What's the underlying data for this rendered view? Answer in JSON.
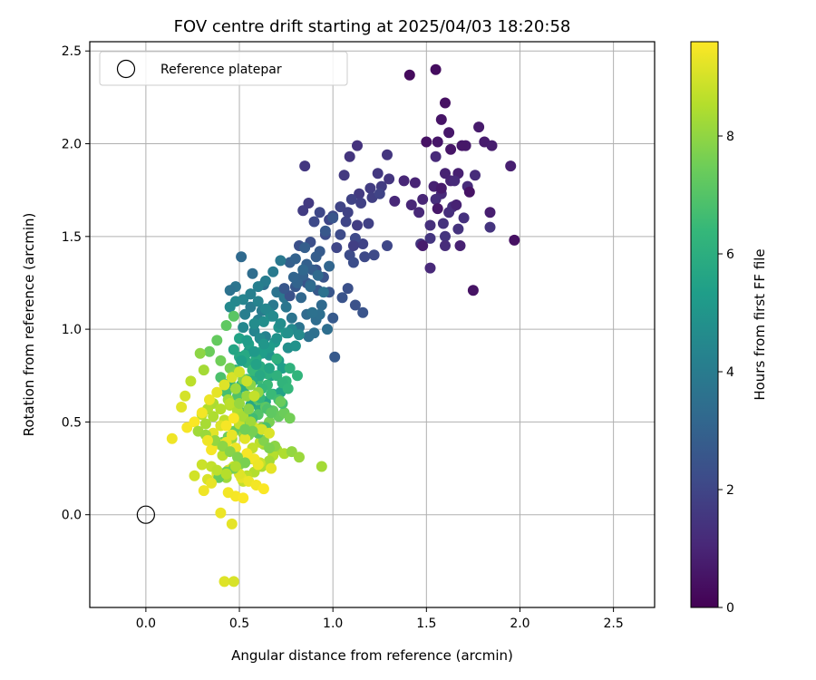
{
  "chart_data": {
    "type": "scatter",
    "title": "FOV centre drift starting at 2025/04/03 18:20:58",
    "xlabel": "Angular distance from reference (arcmin)",
    "ylabel": "Rotation from reference (arcmin)",
    "xlim": [
      -0.3,
      2.72
    ],
    "ylim": [
      -0.5,
      2.55
    ],
    "xticks": [
      0.0,
      0.5,
      1.0,
      1.5,
      2.0,
      2.5
    ],
    "yticks": [
      0.0,
      0.5,
      1.0,
      1.5,
      2.0,
      2.5
    ],
    "xtick_labels": [
      "0.0",
      "0.5",
      "1.0",
      "1.5",
      "2.0",
      "2.5"
    ],
    "ytick_labels": [
      "0.0",
      "0.5",
      "1.0",
      "1.5",
      "2.0",
      "2.5"
    ],
    "grid": true,
    "colormap": "viridis",
    "colorbar": {
      "label": "Hours from first FF file",
      "range": [
        0,
        9.6
      ],
      "ticks": [
        0,
        2,
        4,
        6,
        8
      ],
      "tick_labels": [
        "0",
        "2",
        "4",
        "6",
        "8"
      ]
    },
    "legend": {
      "placement": "top-left",
      "entries": [
        "Reference platepar"
      ]
    },
    "reference_point": {
      "x": 0.0,
      "y": 0.0
    },
    "series": [
      {
        "color_encodes": "hours",
        "x": [
          1.41,
          1.55,
          1.6,
          1.5,
          1.58,
          1.56,
          1.62,
          1.71,
          1.78,
          1.81,
          1.85,
          1.95,
          1.67,
          1.54,
          1.6,
          1.63,
          1.48,
          1.38,
          1.33,
          1.46,
          1.58,
          1.65,
          1.72,
          1.76,
          1.64,
          1.55,
          1.62,
          1.52,
          1.7,
          1.59,
          1.67,
          1.84,
          1.6,
          1.52,
          1.47,
          1.73,
          1.56,
          1.48,
          1.97,
          1.68,
          1.44,
          1.52,
          1.6,
          1.84,
          1.58,
          1.63,
          1.69,
          1.42,
          1.55,
          1.66,
          1.75,
          1.13,
          0.85,
          1.06,
          1.09,
          1.14,
          1.2,
          1.24,
          1.26,
          1.29,
          1.21,
          1.15,
          1.1,
          1.04,
          0.98,
          0.93,
          0.9,
          1.0,
          1.07,
          1.16,
          1.19,
          1.12,
          1.04,
          0.96,
          0.88,
          0.82,
          1.02,
          1.09,
          1.11,
          1.17,
          1.22,
          1.29,
          0.91,
          0.95,
          0.86,
          0.8,
          0.92,
          0.98,
          1.05,
          1.12,
          1.16,
          1.08,
          1.0,
          0.87,
          0.84,
          1.13,
          1.11,
          1.08,
          1.25,
          1.3,
          1.0,
          0.96,
          0.93,
          0.91,
          0.89,
          0.86,
          0.84,
          0.81,
          0.79,
          0.77,
          0.88,
          0.83,
          0.94,
          0.86,
          0.91,
          0.97,
          0.9,
          0.87,
          0.82,
          0.78,
          0.75,
          0.95,
          0.92,
          0.98,
          0.85,
          0.8,
          0.88,
          0.93,
          0.89,
          0.84,
          0.51,
          0.57,
          0.63,
          0.7,
          0.74,
          0.68,
          0.62,
          0.56,
          0.48,
          0.45,
          0.53,
          0.6,
          0.66,
          0.72,
          0.78,
          0.82,
          0.64,
          0.58,
          0.52,
          0.61,
          0.69,
          0.76,
          0.8,
          0.66,
          0.59,
          0.55,
          0.71,
          0.73,
          0.67,
          0.63,
          0.57,
          0.5,
          0.54,
          0.62,
          0.7,
          0.77,
          0.81,
          0.75,
          0.65,
          0.6,
          0.58,
          0.68,
          0.72,
          0.64,
          0.56,
          0.49,
          0.53,
          0.61,
          1.01,
          0.77,
          0.74,
          0.72,
          0.68,
          0.64,
          0.6,
          0.56,
          0.52,
          0.48,
          0.45,
          0.58,
          0.63,
          0.67,
          0.71,
          0.75,
          0.69,
          0.66,
          0.62,
          0.55,
          0.5,
          0.47,
          0.53,
          0.59,
          0.61,
          0.65,
          0.7,
          0.73,
          0.76,
          0.57,
          0.54,
          0.51,
          0.43,
          0.4,
          0.49,
          0.6,
          0.64,
          0.68,
          0.71,
          0.74,
          0.77,
          0.66,
          0.62,
          0.58,
          0.55,
          0.52,
          0.46,
          0.63,
          0.7,
          0.74,
          0.68,
          0.61,
          0.57,
          0.56,
          0.6,
          0.64,
          0.68,
          0.72,
          0.76,
          0.7,
          0.63,
          0.58,
          0.54,
          0.51,
          0.59,
          0.66,
          0.61,
          0.57,
          0.53,
          0.48,
          0.45,
          0.62,
          0.67,
          0.71,
          0.73,
          0.65,
          0.6,
          0.56,
          0.5,
          0.47,
          0.44,
          0.41,
          0.55,
          0.63,
          0.69,
          0.78,
          0.82,
          0.66,
          0.62,
          0.58,
          0.54,
          0.52,
          0.49,
          0.61,
          0.57,
          0.64,
          0.6,
          0.67,
          0.72,
          0.55,
          0.5,
          0.46,
          0.43,
          0.47,
          0.43,
          0.38,
          0.34,
          0.4,
          0.45,
          0.49,
          0.52,
          0.56,
          0.6,
          0.54,
          0.48,
          0.44,
          0.36,
          0.33,
          0.3,
          0.42,
          0.5,
          0.58,
          0.62,
          0.66,
          0.53,
          0.46,
          0.39,
          0.35,
          0.41,
          0.57,
          0.61,
          0.47,
          0.44,
          0.38,
          0.51,
          0.55,
          0.59,
          0.63,
          0.45,
          0.49,
          0.52,
          0.56,
          0.94,
          0.4,
          0.36,
          0.43,
          0.48,
          0.54,
          0.58,
          0.6,
          0.67,
          0.5,
          0.33,
          0.29,
          0.31,
          0.24,
          0.21,
          0.19,
          0.14,
          0.22,
          0.26,
          0.3,
          0.34,
          0.38,
          0.42,
          0.46,
          0.5,
          0.54,
          0.58,
          0.45,
          0.4,
          0.36,
          0.32,
          0.28,
          0.32,
          0.37,
          0.41,
          0.45,
          0.49,
          0.53,
          0.47,
          0.43,
          0.39,
          0.35,
          0.31,
          0.48,
          0.52,
          0.44,
          0.4,
          0.46,
          0.42,
          0.47,
          0.26,
          0.3,
          0.35,
          0.38,
          0.43,
          0.48,
          0.33,
          0.43,
          0.47,
          0.5,
          0.55,
          0.66,
          0.57,
          0.53
        ],
        "y": [
          2.37,
          2.4,
          2.22,
          2.01,
          2.13,
          2.01,
          2.06,
          1.99,
          2.09,
          2.01,
          1.99,
          1.88,
          1.84,
          1.77,
          1.84,
          1.8,
          1.7,
          1.8,
          1.69,
          1.63,
          1.73,
          1.8,
          1.77,
          1.83,
          1.66,
          1.7,
          1.63,
          1.56,
          1.6,
          1.57,
          1.54,
          1.55,
          1.5,
          1.49,
          1.46,
          1.74,
          1.65,
          1.45,
          1.48,
          1.45,
          1.79,
          1.33,
          1.45,
          1.63,
          1.76,
          1.97,
          1.99,
          1.67,
          1.93,
          1.67,
          1.21,
          1.99,
          1.88,
          1.83,
          1.93,
          1.73,
          1.76,
          1.84,
          1.77,
          1.94,
          1.71,
          1.68,
          1.7,
          1.66,
          1.59,
          1.63,
          1.58,
          1.61,
          1.58,
          1.46,
          1.57,
          1.49,
          1.51,
          1.51,
          1.47,
          1.45,
          1.44,
          1.4,
          1.36,
          1.39,
          1.4,
          1.45,
          1.32,
          1.28,
          1.25,
          1.23,
          1.21,
          1.2,
          1.17,
          1.13,
          1.09,
          1.22,
          1.06,
          1.68,
          1.64,
          1.56,
          1.45,
          1.63,
          1.73,
          1.81,
          1.6,
          1.53,
          1.42,
          1.39,
          1.32,
          1.35,
          1.29,
          1.25,
          1.28,
          1.36,
          1.24,
          1.17,
          1.13,
          1.08,
          1.05,
          1.0,
          0.98,
          0.96,
          1.01,
          1.06,
          1.12,
          1.2,
          1.29,
          1.34,
          1.44,
          1.38,
          1.23,
          1.08,
          1.09,
          1.32,
          1.39,
          1.3,
          1.24,
          1.2,
          1.17,
          1.13,
          1.1,
          1.12,
          1.23,
          1.21,
          1.08,
          1.05,
          1.09,
          1.03,
          1.0,
          0.97,
          0.96,
          0.99,
          1.01,
          0.95,
          0.93,
          0.9,
          0.91,
          0.86,
          0.85,
          0.88,
          0.83,
          0.79,
          0.75,
          0.78,
          0.81,
          0.85,
          0.82,
          0.88,
          0.84,
          0.79,
          0.75,
          0.72,
          0.7,
          0.73,
          0.77,
          0.65,
          0.66,
          0.61,
          0.59,
          0.67,
          0.55,
          0.57,
          0.85,
          1.18,
          1.22,
          1.37,
          1.31,
          1.26,
          1.23,
          1.19,
          1.16,
          1.15,
          1.12,
          1.03,
          1.04,
          1.07,
          1.01,
          0.98,
          0.93,
          0.9,
          0.87,
          0.92,
          0.95,
          0.89,
          0.86,
          0.84,
          0.8,
          0.76,
          0.75,
          0.71,
          0.68,
          0.78,
          0.73,
          0.7,
          0.66,
          0.74,
          0.64,
          0.62,
          0.58,
          0.56,
          0.53,
          0.55,
          0.52,
          0.5,
          0.47,
          0.46,
          0.48,
          0.44,
          0.41,
          0.38,
          0.35,
          0.33,
          0.32,
          0.39,
          0.36,
          1.19,
          1.15,
          1.11,
          1.07,
          1.03,
          0.98,
          0.95,
          0.92,
          0.88,
          0.94,
          0.83,
          0.81,
          0.79,
          0.75,
          0.72,
          0.69,
          0.78,
          0.71,
          0.68,
          0.65,
          0.62,
          0.6,
          0.57,
          0.54,
          0.51,
          0.48,
          0.45,
          0.42,
          0.39,
          0.43,
          0.4,
          0.37,
          0.34,
          0.31,
          0.29,
          0.26,
          0.23,
          0.21,
          0.18,
          0.58,
          0.63,
          0.52,
          0.47,
          0.44,
          0.55,
          0.61,
          0.49,
          0.27,
          0.25,
          0.2,
          1.07,
          1.02,
          0.94,
          0.88,
          0.83,
          0.79,
          0.77,
          0.73,
          0.7,
          0.66,
          0.64,
          0.68,
          0.62,
          0.6,
          0.57,
          0.54,
          0.51,
          0.49,
          0.47,
          0.46,
          0.44,
          0.41,
          0.43,
          0.38,
          0.35,
          0.32,
          0.3,
          0.28,
          0.26,
          0.24,
          0.22,
          0.2,
          0.18,
          0.16,
          0.14,
          0.59,
          0.56,
          0.53,
          0.5,
          0.26,
          0.48,
          0.44,
          0.39,
          0.36,
          0.33,
          0.3,
          0.27,
          0.25,
          0.22,
          0.19,
          0.87,
          0.78,
          0.72,
          0.64,
          0.58,
          0.41,
          0.47,
          0.5,
          0.55,
          0.62,
          0.66,
          0.7,
          0.74,
          0.77,
          0.72,
          0.64,
          0.6,
          0.57,
          0.53,
          0.49,
          0.45,
          0.43,
          0.4,
          0.37,
          0.34,
          0.31,
          0.28,
          0.25,
          0.23,
          0.2,
          0.17,
          0.13,
          0.1,
          0.09,
          0.12,
          0.01,
          -0.05,
          -0.36,
          -0.36,
          0.21,
          0.27,
          0.26,
          0.24,
          0.22,
          0.26,
          0.4,
          0.48,
          0.52,
          0.6,
          0.57,
          0.36,
          0.45,
          0.46
        ],
        "hours": [
          0.28,
          0.34,
          0.41,
          0.47,
          0.52,
          0.58,
          0.61,
          0.66,
          0.7,
          0.74,
          0.78,
          0.82,
          0.86,
          0.9,
          0.93,
          0.96,
          1.0,
          1.03,
          1.06,
          1.09,
          1.12,
          1.15,
          1.18,
          1.21,
          1.24,
          1.27,
          1.3,
          1.33,
          1.36,
          1.38,
          1.41,
          1.44,
          1.46,
          1.49,
          1.52,
          0.5,
          0.62,
          0.75,
          0.44,
          0.88,
          0.97,
          1.1,
          1.22,
          0.8,
          0.69,
          0.55,
          0.6,
          1.05,
          1.14,
          0.92,
          0.48,
          1.4,
          1.55,
          1.6,
          1.46,
          1.65,
          1.72,
          1.58,
          1.68,
          1.5,
          1.78,
          1.84,
          1.9,
          1.96,
          2.02,
          2.08,
          2.14,
          2.06,
          1.98,
          1.92,
          1.86,
          2.12,
          2.18,
          2.24,
          2.3,
          2.36,
          2.0,
          2.2,
          2.26,
          2.1,
          2.16,
          2.04,
          2.42,
          2.48,
          2.54,
          2.6,
          2.66,
          2.56,
          2.46,
          2.4,
          2.5,
          2.34,
          2.7,
          1.62,
          1.7,
          1.74,
          1.8,
          1.88,
          1.94,
          1.52,
          2.52,
          2.62,
          2.72,
          2.8,
          2.86,
          2.92,
          2.98,
          3.04,
          3.1,
          2.9,
          3.16,
          3.22,
          3.28,
          3.34,
          3.4,
          3.46,
          3.52,
          3.58,
          3.64,
          3.7,
          3.76,
          3.6,
          3.3,
          3.12,
          2.84,
          3.0,
          3.36,
          3.48,
          3.56,
          3.2,
          3.3,
          3.42,
          3.54,
          3.66,
          3.78,
          3.9,
          4.02,
          3.96,
          3.72,
          3.6,
          4.1,
          4.2,
          4.3,
          4.4,
          4.5,
          4.6,
          4.26,
          4.36,
          4.46,
          4.56,
          4.66,
          4.76,
          4.86,
          4.96,
          5.06,
          5.16,
          5.26,
          5.36,
          5.46,
          5.56,
          5.66,
          5.76,
          5.86,
          5.96,
          6.06,
          6.16,
          6.26,
          6.36,
          6.46,
          6.56,
          6.66,
          5.4,
          5.5,
          5.6,
          5.7,
          5.8,
          5.9,
          6.0,
          2.7,
          2.4,
          2.6,
          3.84,
          3.94,
          4.04,
          4.14,
          4.24,
          4.34,
          4.44,
          4.54,
          4.64,
          4.74,
          4.84,
          4.94,
          5.04,
          5.14,
          5.24,
          5.34,
          5.44,
          5.54,
          5.64,
          5.74,
          5.84,
          5.94,
          6.04,
          6.14,
          6.24,
          6.34,
          6.44,
          6.54,
          6.64,
          6.74,
          6.84,
          6.94,
          7.04,
          7.14,
          7.24,
          7.34,
          7.44,
          7.54,
          7.64,
          7.74,
          7.84,
          7.94,
          8.04,
          8.14,
          8.24,
          8.34,
          8.44,
          8.54,
          8.64,
          8.74,
          4.2,
          4.32,
          4.44,
          4.56,
          4.68,
          4.8,
          4.92,
          5.04,
          5.16,
          5.28,
          5.4,
          5.52,
          5.64,
          5.76,
          5.88,
          6.0,
          6.12,
          6.24,
          6.36,
          6.48,
          6.6,
          6.72,
          6.84,
          6.96,
          7.08,
          7.2,
          7.32,
          7.44,
          7.56,
          7.68,
          7.8,
          7.92,
          8.04,
          8.16,
          8.28,
          8.4,
          8.52,
          8.64,
          8.76,
          6.2,
          6.4,
          6.6,
          6.8,
          7.0,
          7.2,
          7.4,
          7.6,
          7.8,
          8.0,
          8.2,
          7.1,
          7.2,
          7.3,
          7.4,
          7.5,
          7.6,
          7.7,
          7.8,
          7.9,
          8.0,
          8.1,
          8.2,
          8.3,
          8.4,
          8.5,
          8.6,
          8.7,
          8.8,
          8.9,
          9.0,
          9.1,
          9.2,
          9.3,
          9.4,
          9.5,
          8.65,
          8.75,
          8.85,
          8.95,
          9.05,
          9.15,
          9.25,
          9.35,
          9.45,
          9.55,
          8.55,
          8.45,
          8.35,
          8.25,
          8.3,
          9.1,
          9.2,
          9.3,
          9.4,
          9.5,
          9.45,
          9.35,
          9.25,
          9.15,
          9.05,
          7.95,
          8.3,
          8.65,
          9.0,
          9.2,
          9.4,
          9.5,
          9.55,
          9.45,
          9.35,
          9.25,
          9.15,
          9.05,
          8.95,
          8.85,
          8.75,
          8.65,
          8.55,
          8.45,
          8.35,
          8.25,
          8.15,
          8.05,
          7.95,
          7.85,
          7.75,
          7.65,
          7.55,
          7.45,
          7.35,
          9.3,
          9.4,
          9.5,
          9.55,
          9.45,
          9.35,
          9.25,
          9.15,
          9.05,
          8.95,
          8.85,
          8.75,
          8.65,
          8.55,
          8.45,
          9.4,
          9.5,
          9.55,
          8.1,
          7.9,
          7.7,
          7.6,
          7.5
        ]
      }
    ]
  }
}
